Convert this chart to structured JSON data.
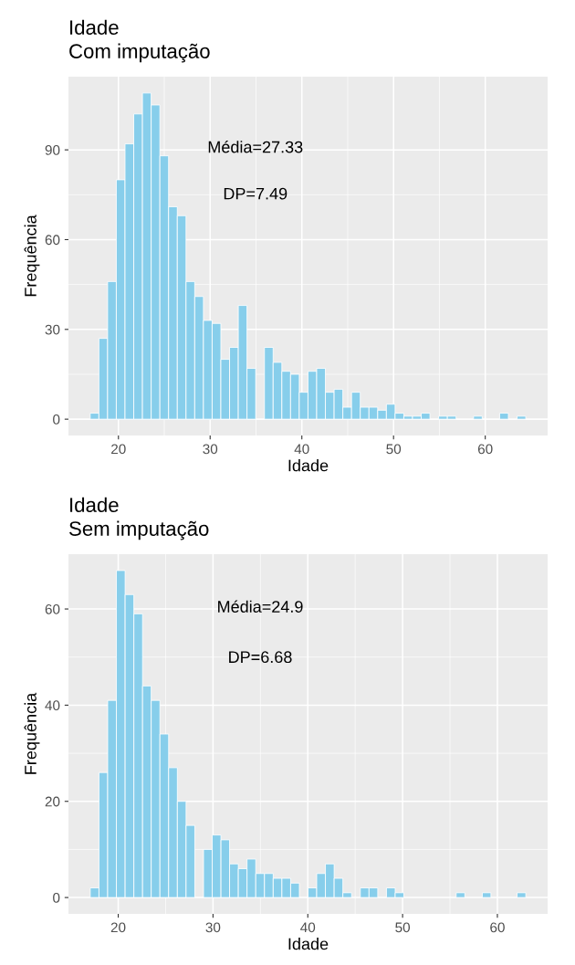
{
  "chart_data": [
    {
      "type": "histogram",
      "title": "Idade",
      "subtitle": "Com imputação",
      "xlabel": "Idade",
      "ylabel": "Frequência",
      "color": "#87ceeb",
      "grid": true,
      "bins": [
        16.92,
        17.87,
        18.82,
        19.77,
        20.72,
        21.67,
        22.62,
        23.57,
        24.52,
        25.47,
        26.42,
        27.37,
        28.32,
        29.27,
        30.22,
        31.17,
        32.12,
        33.07,
        34.02,
        34.97,
        35.92,
        36.87,
        37.82,
        38.77,
        39.72,
        40.67,
        41.62,
        42.57,
        43.52,
        44.47,
        45.42,
        46.37,
        47.32,
        48.27,
        49.22,
        50.17,
        51.12,
        52.07,
        53.02,
        53.97,
        54.92,
        55.87,
        56.82,
        57.77,
        58.72,
        59.67,
        60.62,
        61.57,
        62.52,
        63.47,
        64.42
      ],
      "values": [
        2,
        27,
        46,
        80,
        92,
        102,
        109,
        105,
        88,
        71,
        68,
        46,
        41,
        33,
        32,
        20,
        24,
        38,
        17,
        0,
        24,
        19,
        16,
        15,
        9,
        16,
        17,
        9,
        10,
        4,
        9,
        4,
        4,
        3,
        5,
        2,
        1,
        1,
        2,
        0,
        1,
        1,
        0,
        0,
        1,
        0,
        0,
        2,
        0,
        1
      ],
      "xlim": [
        14.55,
        66.8
      ],
      "xticks": [
        20,
        30,
        40,
        50,
        60
      ],
      "ylim": [
        -5.45,
        114.45
      ],
      "yticks": [
        0,
        30,
        60,
        90
      ],
      "annotations": [
        "Média=27.33",
        "DP=7.49"
      ]
    },
    {
      "type": "histogram",
      "title": "Idade",
      "subtitle": "Sem imputação",
      "xlabel": "Idade",
      "ylabel": "Frequência",
      "color": "#87ceeb",
      "grid": true,
      "bins": [
        17.05,
        17.97,
        18.89,
        19.81,
        20.73,
        21.65,
        22.57,
        23.48,
        24.4,
        25.32,
        26.24,
        27.16,
        28.08,
        29.0,
        29.92,
        30.84,
        31.75,
        32.67,
        33.59,
        34.51,
        35.43,
        36.35,
        37.27,
        38.19,
        39.11,
        40.03,
        40.94,
        41.86,
        42.78,
        43.7,
        44.62,
        45.54,
        46.46,
        47.38,
        48.3,
        49.22,
        50.13,
        51.05,
        51.97,
        52.89,
        53.81,
        54.73,
        55.65,
        56.57,
        57.49,
        58.41,
        59.32,
        60.24,
        61.16,
        62.08,
        63.0
      ],
      "values": [
        2,
        26,
        41,
        68,
        63,
        59,
        44,
        41,
        34,
        27,
        20,
        15,
        0,
        10,
        13,
        12,
        7,
        6,
        8,
        5,
        5,
        4,
        4,
        3,
        0,
        2,
        5,
        7,
        4,
        1,
        0,
        2,
        2,
        0,
        2,
        1,
        0,
        0,
        0,
        0,
        0,
        0,
        1,
        0,
        0,
        1,
        0,
        0,
        0,
        1
      ],
      "xlim": [
        14.75,
        65.3
      ],
      "xticks": [
        20,
        30,
        40,
        50,
        60
      ],
      "ylim": [
        -3.4,
        71.4
      ],
      "yticks": [
        0,
        20,
        40,
        60
      ],
      "annotations": [
        "Média=24.9",
        "DP=6.68"
      ]
    }
  ]
}
